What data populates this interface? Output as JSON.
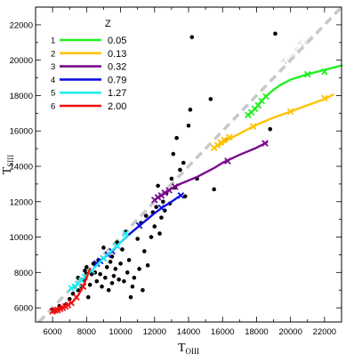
{
  "chart_data": {
    "type": "line",
    "xlabel": "T",
    "xlabel_sub": "OIII",
    "ylabel": "T",
    "ylabel_sub": "SIII",
    "xlim": [
      5000,
      23000
    ],
    "ylim": [
      5200,
      23000
    ],
    "xticks": [
      6000,
      8000,
      10000,
      12000,
      14000,
      16000,
      18000,
      20000,
      22000
    ],
    "yticks": [
      6000,
      8000,
      10000,
      12000,
      14000,
      16000,
      18000,
      20000,
      22000
    ],
    "diagonal_label": "T_SIII = T_OIII",
    "diagonal_label_main_1": "T",
    "diagonal_label_sub_1": "SIII",
    "diagonal_label_eq": " = ",
    "diagonal_label_main_2": "T",
    "diagonal_label_sub_2": "OIII",
    "legend_title": "Z",
    "legend_placement": "top-left",
    "series": [
      {
        "index": "1",
        "name": "0.05",
        "color": "#22ee22",
        "points": [
          [
            17500,
            16900
          ],
          [
            17800,
            17150
          ],
          [
            18050,
            17400
          ],
          [
            18300,
            17700
          ],
          [
            18550,
            17950
          ],
          [
            18900,
            18250
          ],
          [
            19400,
            18600
          ],
          [
            20000,
            18900
          ],
          [
            21000,
            19200
          ],
          [
            23000,
            19700
          ]
        ],
        "markers": [
          [
            17500,
            16900
          ],
          [
            17700,
            17050
          ],
          [
            17900,
            17250
          ],
          [
            18100,
            17450
          ],
          [
            18300,
            17700
          ],
          [
            18550,
            17950
          ],
          [
            21000,
            19200
          ],
          [
            22000,
            19350
          ]
        ]
      },
      {
        "index": "2",
        "name": "0.13",
        "color": "#ffc200",
        "points": [
          [
            15500,
            15050
          ],
          [
            16000,
            15300
          ],
          [
            16500,
            15600
          ],
          [
            17000,
            15850
          ],
          [
            17500,
            16100
          ],
          [
            18000,
            16350
          ],
          [
            19000,
            16750
          ],
          [
            20000,
            17100
          ],
          [
            21000,
            17450
          ],
          [
            22000,
            17800
          ],
          [
            22500,
            18050
          ]
        ],
        "markers": [
          [
            15500,
            15050
          ],
          [
            15700,
            15200
          ],
          [
            15900,
            15350
          ],
          [
            16100,
            15500
          ],
          [
            16400,
            15650
          ],
          [
            17800,
            16250
          ],
          [
            20000,
            17100
          ],
          [
            22000,
            17850
          ]
        ]
      },
      {
        "index": "3",
        "name": "0.32",
        "color": "#7a0c8c",
        "points": [
          [
            12000,
            12100
          ],
          [
            12500,
            12400
          ],
          [
            13000,
            12750
          ],
          [
            13500,
            13000
          ],
          [
            14000,
            13200
          ],
          [
            14500,
            13400
          ],
          [
            15000,
            13650
          ],
          [
            15500,
            13900
          ],
          [
            16000,
            14200
          ],
          [
            17000,
            14650
          ],
          [
            18000,
            15050
          ],
          [
            18600,
            15350
          ]
        ],
        "markers": [
          [
            12000,
            12100
          ],
          [
            12200,
            12250
          ],
          [
            12400,
            12350
          ],
          [
            12600,
            12500
          ],
          [
            12850,
            12650
          ],
          [
            13200,
            12850
          ],
          [
            16300,
            14300
          ],
          [
            18500,
            15300
          ]
        ]
      },
      {
        "index": "4",
        "name": "0.79",
        "color": "#1010e0",
        "points": [
          [
            8600,
            8500
          ],
          [
            9000,
            8800
          ],
          [
            9500,
            9200
          ],
          [
            10000,
            9700
          ],
          [
            10500,
            10150
          ],
          [
            11000,
            10550
          ],
          [
            11500,
            10950
          ],
          [
            12000,
            11350
          ],
          [
            12500,
            11700
          ],
          [
            13000,
            12000
          ],
          [
            13600,
            12400
          ]
        ],
        "markers": [
          [
            8600,
            8500
          ],
          [
            8800,
            8650
          ],
          [
            9000,
            8800
          ],
          [
            9250,
            9000
          ],
          [
            9500,
            9200
          ],
          [
            9800,
            9500
          ],
          [
            11100,
            10650
          ],
          [
            12400,
            11650
          ],
          [
            13550,
            12350
          ]
        ]
      },
      {
        "index": "5",
        "name": "1.27",
        "color": "#20eeee",
        "points": [
          [
            7100,
            7100
          ],
          [
            7400,
            7300
          ],
          [
            7700,
            7550
          ],
          [
            8000,
            7850
          ],
          [
            8500,
            8300
          ],
          [
            9000,
            8800
          ],
          [
            9500,
            9250
          ],
          [
            10000,
            9700
          ],
          [
            10400,
            10100
          ]
        ],
        "markers": [
          [
            7100,
            7100
          ],
          [
            7300,
            7200
          ],
          [
            7500,
            7350
          ],
          [
            7700,
            7550
          ],
          [
            7900,
            7750
          ],
          [
            8300,
            8100
          ],
          [
            9000,
            8800
          ],
          [
            9800,
            9500
          ],
          [
            10300,
            10200
          ]
        ]
      },
      {
        "index": "6",
        "name": "2.00",
        "color": "#ee1010",
        "points": [
          [
            6000,
            5800
          ],
          [
            6300,
            5880
          ],
          [
            6600,
            6000
          ],
          [
            6900,
            6150
          ],
          [
            7200,
            6350
          ],
          [
            7500,
            6700
          ],
          [
            7800,
            7200
          ],
          [
            8000,
            7700
          ],
          [
            8200,
            8200
          ]
        ],
        "markers": [
          [
            6000,
            5800
          ],
          [
            6150,
            5850
          ],
          [
            6300,
            5880
          ],
          [
            6450,
            5950
          ],
          [
            6600,
            6000
          ],
          [
            6750,
            6080
          ],
          [
            6900,
            6150
          ],
          [
            7100,
            6280
          ],
          [
            7400,
            6600
          ],
          [
            7800,
            7200
          ]
        ]
      }
    ],
    "observations": [
      [
        6000,
        5900
      ],
      [
        6400,
        6100
      ],
      [
        6800,
        6200
      ],
      [
        7000,
        6500
      ],
      [
        7200,
        6800
      ],
      [
        7300,
        7200
      ],
      [
        7500,
        7000
      ],
      [
        7500,
        7700
      ],
      [
        7700,
        7200
      ],
      [
        7800,
        7600
      ],
      [
        7900,
        8100
      ],
      [
        8000,
        7900
      ],
      [
        8000,
        8300
      ],
      [
        8100,
        6600
      ],
      [
        8200,
        7300
      ],
      [
        8300,
        7900
      ],
      [
        8400,
        8500
      ],
      [
        8500,
        8000
      ],
      [
        8600,
        7500
      ],
      [
        8700,
        8700
      ],
      [
        8800,
        7900
      ],
      [
        8900,
        7200
      ],
      [
        9000,
        9400
      ],
      [
        9100,
        7700
      ],
      [
        9200,
        8300
      ],
      [
        9300,
        7000
      ],
      [
        9400,
        8600
      ],
      [
        9500,
        8900
      ],
      [
        9500,
        7400
      ],
      [
        9600,
        7800
      ],
      [
        9700,
        8200
      ],
      [
        9800,
        9700
      ],
      [
        9900,
        7600
      ],
      [
        10000,
        8500
      ],
      [
        10100,
        9300
      ],
      [
        10200,
        7500
      ],
      [
        10300,
        10300
      ],
      [
        10400,
        8000
      ],
      [
        10500,
        8700
      ],
      [
        10600,
        6600
      ],
      [
        10700,
        7200
      ],
      [
        10800,
        7700
      ],
      [
        11000,
        9900
      ],
      [
        11100,
        8200
      ],
      [
        11200,
        10800
      ],
      [
        11300,
        7000
      ],
      [
        11400,
        9200
      ],
      [
        11500,
        11200
      ],
      [
        11600,
        8400
      ],
      [
        11800,
        10000
      ],
      [
        11900,
        11400
      ],
      [
        12000,
        10600
      ],
      [
        12100,
        11700
      ],
      [
        12200,
        12900
      ],
      [
        12300,
        10200
      ],
      [
        12400,
        11100
      ],
      [
        12500,
        12000
      ],
      [
        12600,
        11500
      ],
      [
        12700,
        12500
      ],
      [
        12900,
        11900
      ],
      [
        13000,
        13300
      ],
      [
        13100,
        14700
      ],
      [
        13200,
        12800
      ],
      [
        13300,
        15600
      ],
      [
        13500,
        13800
      ],
      [
        13700,
        14200
      ],
      [
        13800,
        12300
      ],
      [
        14000,
        16300
      ],
      [
        14100,
        17200
      ],
      [
        14200,
        21300
      ],
      [
        14500,
        13300
      ],
      [
        15300,
        17800
      ],
      [
        15500,
        12700
      ],
      [
        16200,
        15500
      ],
      [
        18800,
        16100
      ],
      [
        19100,
        21500
      ]
    ]
  }
}
